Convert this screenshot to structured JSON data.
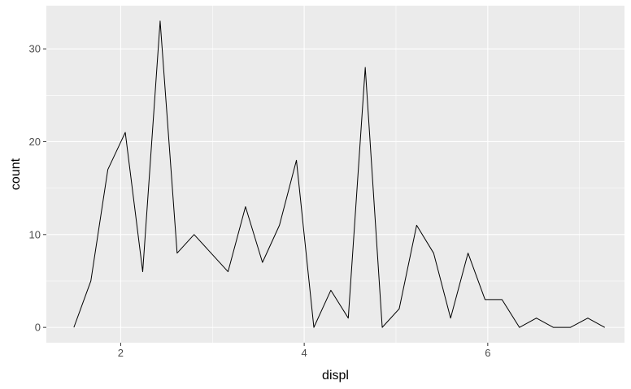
{
  "chart_data": {
    "type": "line",
    "title": "",
    "xlabel": "displ",
    "ylabel": "count",
    "xlim": [
      1.19,
      7.49
    ],
    "ylim": [
      -1.65,
      34.65
    ],
    "x_ticks": [
      2,
      4,
      6
    ],
    "y_ticks": [
      0,
      10,
      20,
      30
    ],
    "x_minor": [
      3,
      5,
      7
    ],
    "y_minor": [
      5,
      15,
      25
    ],
    "grid": true,
    "legend": "none",
    "series": [
      {
        "color": "#000000",
        "x": [
          1.49,
          1.675,
          1.86,
          2.05,
          2.24,
          2.43,
          2.615,
          2.8,
          2.985,
          3.17,
          3.36,
          3.545,
          3.73,
          3.915,
          4.105,
          4.29,
          4.48,
          4.665,
          4.85,
          5.035,
          5.225,
          5.41,
          5.595,
          5.785,
          5.97,
          6.155,
          6.345,
          6.53,
          6.715,
          6.9,
          7.09,
          7.275
        ],
        "y": [
          0,
          5,
          17,
          21,
          6,
          33,
          8,
          10,
          8,
          6,
          13,
          7,
          11,
          18,
          0,
          4,
          1,
          28,
          0,
          2,
          11,
          8,
          1,
          8,
          3,
          3,
          0,
          1,
          0,
          0,
          1,
          0
        ]
      }
    ]
  }
}
